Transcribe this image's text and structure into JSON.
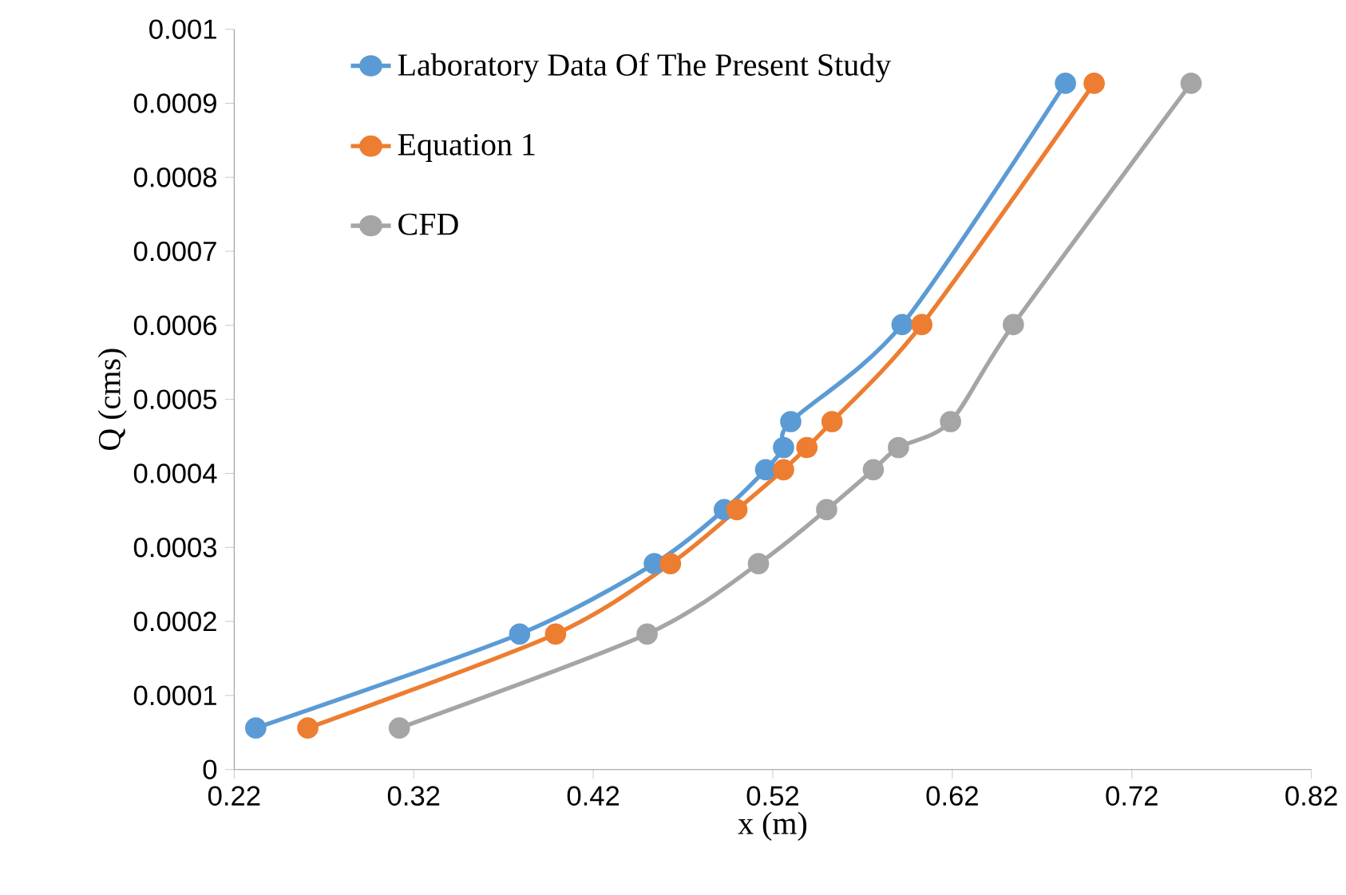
{
  "chart_data": {
    "type": "line",
    "xlabel": "x (m)",
    "ylabel": "Q (cms)",
    "series": [
      {
        "name": "Laboratory Data Of The Present Study",
        "color": "#5b9bd5",
        "x": [
          0.232,
          0.379,
          0.454,
          0.493,
          0.516,
          0.526,
          0.53,
          0.592,
          0.683
        ],
        "values": [
          5.6e-05,
          0.000183,
          0.000278,
          0.000351,
          0.000405,
          0.000435,
          0.00047,
          0.000601,
          0.000927
        ]
      },
      {
        "name": "Equation 1",
        "color": "#ed7d31",
        "x": [
          0.261,
          0.399,
          0.463,
          0.5,
          0.526,
          0.539,
          0.553,
          0.603,
          0.699
        ],
        "values": [
          5.6e-05,
          0.000183,
          0.000278,
          0.000351,
          0.000405,
          0.000435,
          0.00047,
          0.000601,
          0.000927
        ]
      },
      {
        "name": "CFD",
        "color": "#a5a5a5",
        "x": [
          0.312,
          0.45,
          0.512,
          0.55,
          0.576,
          0.59,
          0.619,
          0.654,
          0.753
        ],
        "values": [
          5.6e-05,
          0.000183,
          0.000278,
          0.000351,
          0.000405,
          0.000435,
          0.00047,
          0.000601,
          0.000927
        ]
      }
    ],
    "xlim": [
      0.22,
      0.82
    ],
    "xticks": [
      0.22,
      0.32,
      0.42,
      0.52,
      0.62,
      0.72,
      0.82
    ],
    "ylim": [
      0,
      0.001
    ],
    "yticks": [
      0,
      0.0001,
      0.0002,
      0.0003,
      0.0004,
      0.0005,
      0.0006,
      0.0007,
      0.0008,
      0.0009,
      0.001
    ],
    "grid": false,
    "legend": "top left",
    "marker": "circle",
    "line_style": "solid"
  }
}
